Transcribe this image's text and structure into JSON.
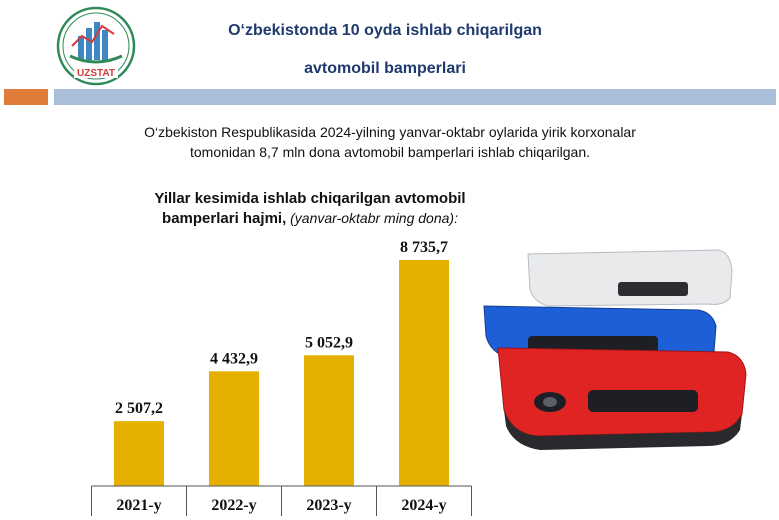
{
  "logo": {
    "text": "UZSTAT"
  },
  "header": {
    "title_line1": "O‘zbekistonda 10 oyda ishlab chiqarilgan",
    "title_line2": "avtomobil bamperlari"
  },
  "intro": {
    "line1": "O‘zbekiston  Respublikasida 2024-yilning yanvar-oktabr oylarida yirik korxonalar",
    "line2": "tomonidan 8,7 mln dona avtomobil bamperlari  ishlab chiqarilgan."
  },
  "chart_title": {
    "line1": "Yillar kesimida ishlab chiqarilgan  avtomobil",
    "line2_bold": "bamperlari hajmi,",
    "line2_italic": " (yanvar-oktabr ming dona):"
  },
  "colors": {
    "bar": "#e6b000",
    "title": "#1f3a6e",
    "accent_orange": "#e07b3a",
    "accent_blue": "#a9bfd9"
  },
  "chart_data": {
    "type": "bar",
    "categories": [
      "2021-y",
      "2022-y",
      "2023-y",
      "2024-y"
    ],
    "values": [
      2507.2,
      4432.9,
      5052.9,
      8735.7
    ],
    "value_labels": [
      "2 507,2",
      "4 432,9",
      "5 052,9",
      "8 735,7"
    ],
    "title": "Yillar kesimida ishlab chiqarilgan  avtomobil bamperlari hajmi, (yanvar-oktabr ming dona):",
    "xlabel": "",
    "ylabel": "",
    "ylim": [
      0,
      9000
    ],
    "grid": false,
    "legend": "none"
  }
}
